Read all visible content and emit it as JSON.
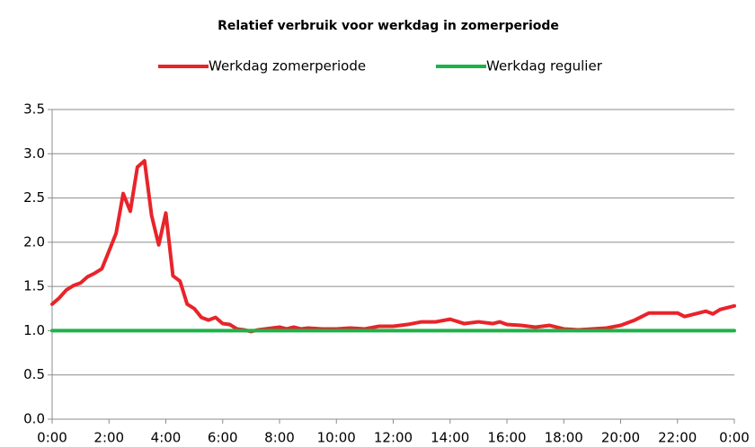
{
  "chart_data": {
    "type": "line",
    "title": "Relatief verbruik voor werkdag in zomerperiode",
    "xlim": [
      0,
      24
    ],
    "xticks": [
      {
        "value": 0,
        "label": "0:00"
      },
      {
        "value": 2,
        "label": "2:00"
      },
      {
        "value": 4,
        "label": "4:00"
      },
      {
        "value": 6,
        "label": "6:00"
      },
      {
        "value": 8,
        "label": "8:00"
      },
      {
        "value": 10,
        "label": "10:00"
      },
      {
        "value": 12,
        "label": "12:00"
      },
      {
        "value": 14,
        "label": "14:00"
      },
      {
        "value": 16,
        "label": "16:00"
      },
      {
        "value": 18,
        "label": "18:00"
      },
      {
        "value": 20,
        "label": "20:00"
      },
      {
        "value": 22,
        "label": "22:00"
      },
      {
        "value": 24,
        "label": "0:00"
      }
    ],
    "ylim": [
      0,
      3.5
    ],
    "yticks": [
      {
        "value": 0,
        "label": "0.0"
      },
      0.5,
      {
        "value": 1,
        "label": "1.0"
      },
      1.5,
      {
        "value": 2,
        "label": "2.0"
      },
      2.5,
      {
        "value": 3,
        "label": "3.0"
      },
      3.5
    ],
    "grid": true,
    "legend": "top",
    "series": [
      {
        "name": "Werkdag zomerperiode",
        "color": "#e8242a",
        "x": [
          0,
          0.25,
          0.5,
          0.75,
          1,
          1.25,
          1.5,
          1.75,
          2,
          2.25,
          2.5,
          2.75,
          3,
          3.25,
          3.5,
          3.75,
          4,
          4.25,
          4.5,
          4.75,
          5,
          5.25,
          5.5,
          5.75,
          6,
          6.25,
          6.5,
          6.75,
          7,
          7.25,
          7.5,
          7.75,
          8,
          8.25,
          8.5,
          8.75,
          9,
          9.5,
          10,
          10.5,
          11,
          11.5,
          12,
          12.5,
          13,
          13.5,
          14,
          14.5,
          15,
          15.5,
          15.75,
          16,
          16.5,
          17,
          17.5,
          18,
          18.5,
          19,
          19.5,
          20,
          20.5,
          21,
          21.5,
          22,
          22.25,
          22.5,
          23,
          23.25,
          23.5,
          24
        ],
        "values": [
          1.3,
          1.37,
          1.46,
          1.51,
          1.54,
          1.61,
          1.65,
          1.7,
          1.9,
          2.1,
          2.55,
          2.35,
          2.85,
          2.92,
          2.3,
          1.97,
          2.33,
          1.62,
          1.56,
          1.3,
          1.25,
          1.15,
          1.12,
          1.15,
          1.08,
          1.07,
          1.02,
          1.01,
          0.99,
          1.01,
          1.02,
          1.03,
          1.04,
          1.02,
          1.04,
          1.02,
          1.03,
          1.02,
          1.02,
          1.03,
          1.02,
          1.05,
          1.05,
          1.07,
          1.1,
          1.1,
          1.13,
          1.08,
          1.1,
          1.08,
          1.1,
          1.07,
          1.06,
          1.04,
          1.06,
          1.02,
          1.01,
          1.02,
          1.03,
          1.06,
          1.12,
          1.2,
          1.2,
          1.2,
          1.16,
          1.18,
          1.22,
          1.19,
          1.24,
          1.28
        ]
      },
      {
        "name": "Werkdag regulier",
        "color": "#1db34a",
        "x": [
          0,
          24
        ],
        "values": [
          1,
          1
        ]
      }
    ]
  }
}
